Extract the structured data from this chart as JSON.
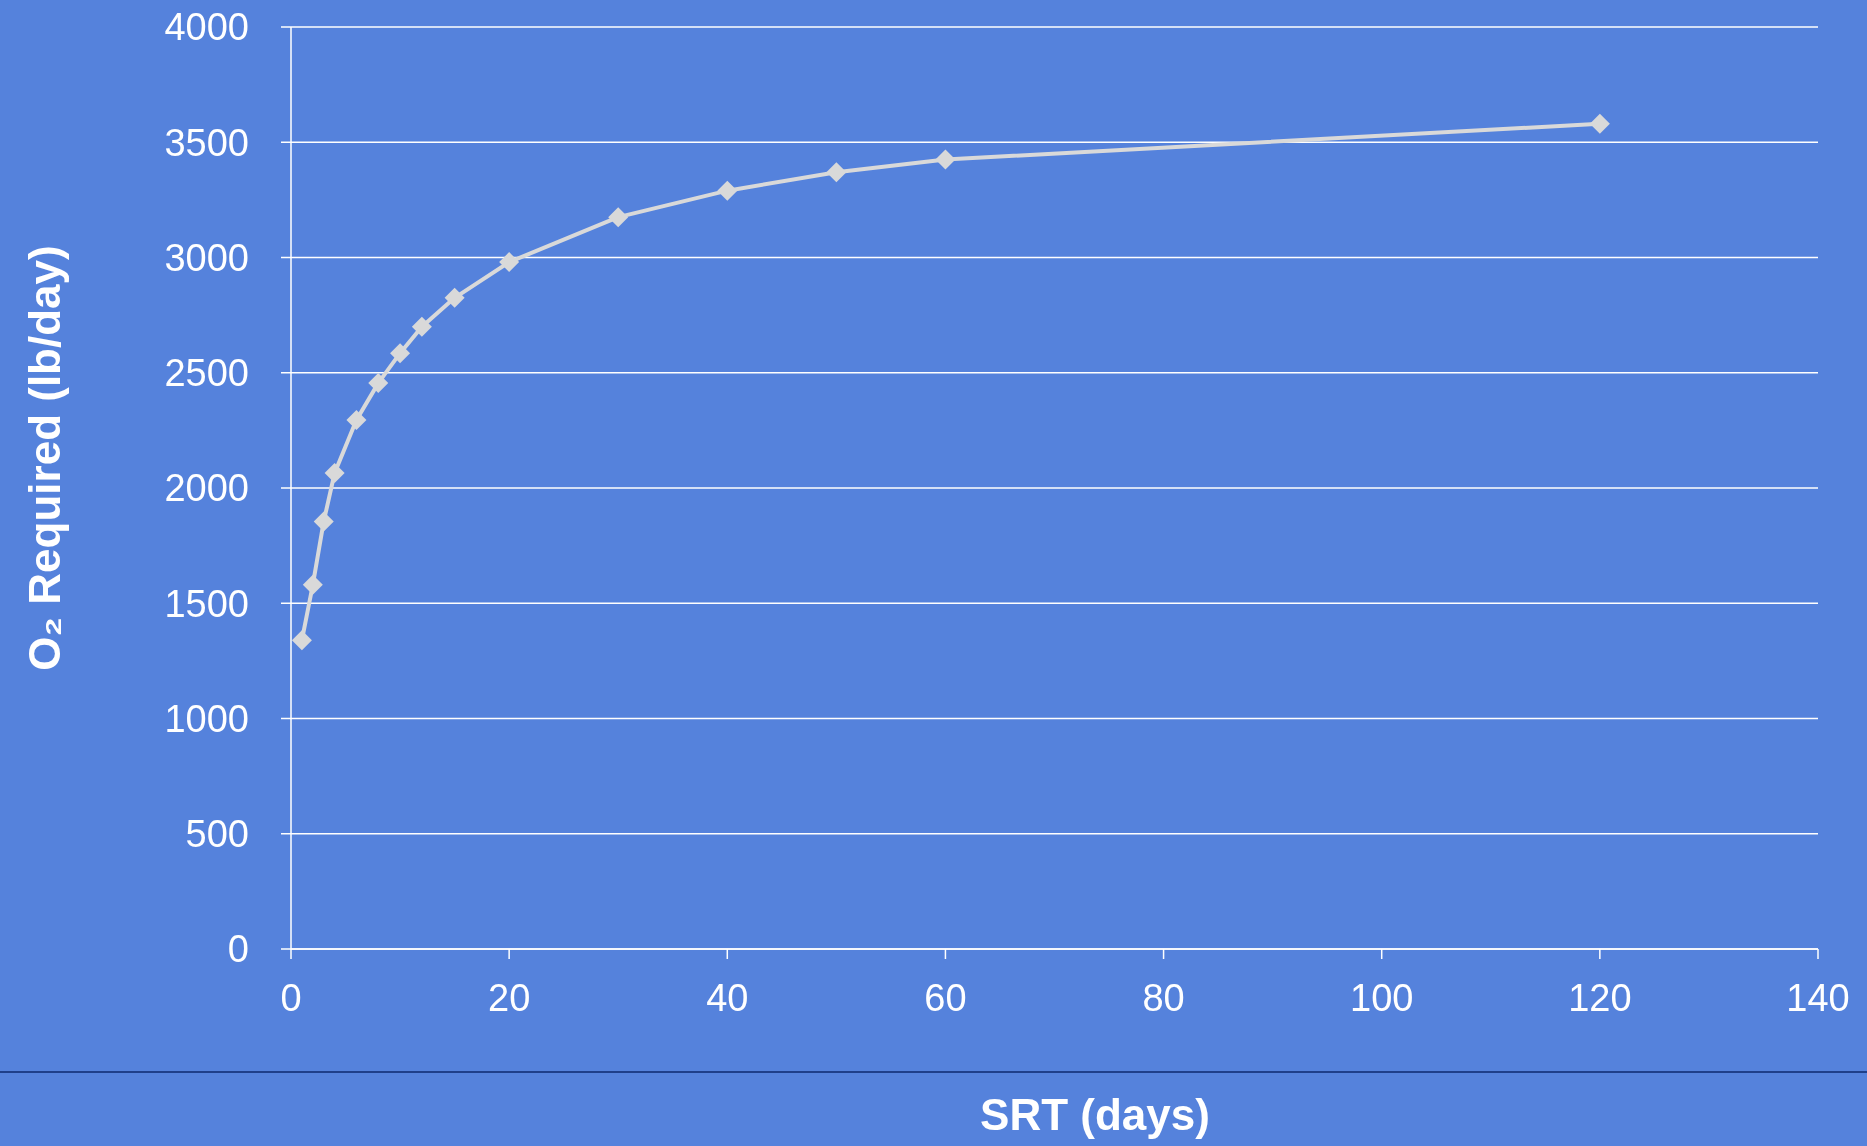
{
  "chart_data": {
    "type": "line",
    "xlabel": "SRT (days)",
    "ylabel": "O₂ Required  (lb/day)",
    "x": [
      1,
      2,
      3,
      4,
      6,
      8,
      10,
      12,
      15,
      20,
      30,
      40,
      50,
      60,
      120
    ],
    "series": [
      {
        "color": "#d9d9d9",
        "values": [
          1340,
          1580,
          1855,
          2065,
          2295,
          2455,
          2585,
          2700,
          2825,
          2980,
          3175,
          3290,
          3370,
          3425,
          3580
        ]
      }
    ],
    "xlim": [
      0,
      140
    ],
    "xticks": [
      0,
      20,
      40,
      60,
      80,
      100,
      120,
      140
    ],
    "ylim": [
      0,
      4000
    ],
    "yticks": [
      0,
      500,
      1000,
      1500,
      2000,
      2500,
      3000,
      3500,
      4000
    ],
    "grid": "y",
    "marker": "diamond",
    "line_style": "solid"
  }
}
